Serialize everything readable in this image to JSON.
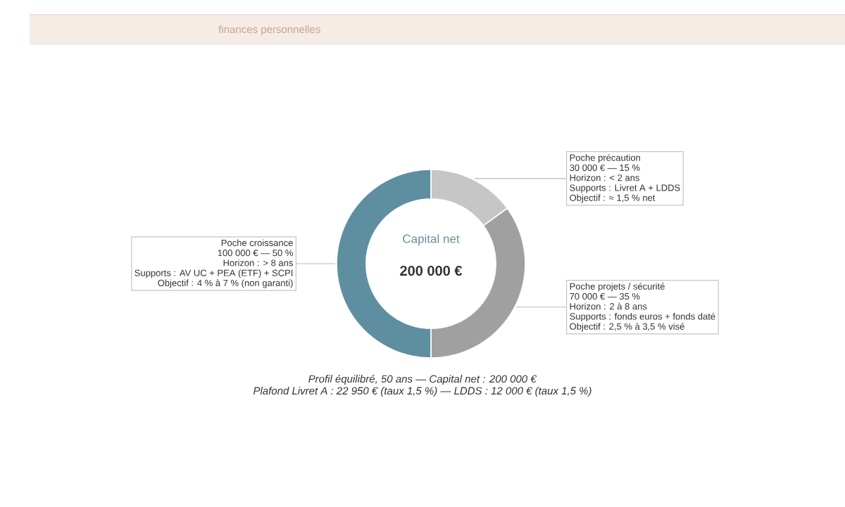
{
  "chart_data": {
    "type": "donut",
    "categories": [
      "Poche précaution",
      "Poche projets / sécurité",
      "Poche croissance"
    ],
    "values": [
      30000,
      70000,
      100000
    ],
    "value_labels": [
      "30 000 € — 15 %",
      "70 000 € — 35 %",
      "100 000 € — 50 %"
    ],
    "colors": [
      "#c6c6c6",
      "#a0a0a0",
      "#5e8fa0"
    ],
    "annotations": [
      "finances personnelles",
      "Capital net",
      "200 000 €",
      "*Profil équilibré, 50 ans — Capital net : 200 000 €*",
      "*Plafond Livret A : 22 950 € (taux 1,5 %) — LDDS : 12 000 € (taux 1,5 %)*",
      {
        "text": "Horizon : < 2 ans",
        "x": "Poche précaution"
      },
      {
        "text": "Supports : Livret A + LDDS",
        "x": "Poche précaution"
      },
      {
        "text": "Objectif : ≈ 1,5 % net",
        "x": "Poche précaution"
      },
      {
        "text": "Horizon : 2 à 8 ans",
        "x": "Poche projets / sécurité"
      },
      {
        "text": "Supports : fonds euros + fonds daté",
        "x": "Poche projets / sécurité"
      },
      {
        "text": "Objectif : 2,5 % à 3,5 % visé",
        "x": "Poche projets / sécurité"
      },
      {
        "text": "Horizon : > 8 ans",
        "x": "Poche croissance"
      },
      {
        "text": "Supports : AV UC + PEA (ETF) + SCPI",
        "x": "Poche croissance"
      },
      {
        "text": "Objectif : 4 % à 7 % (non garanti)",
        "x": "Poche croissance"
      }
    ]
  }
}
